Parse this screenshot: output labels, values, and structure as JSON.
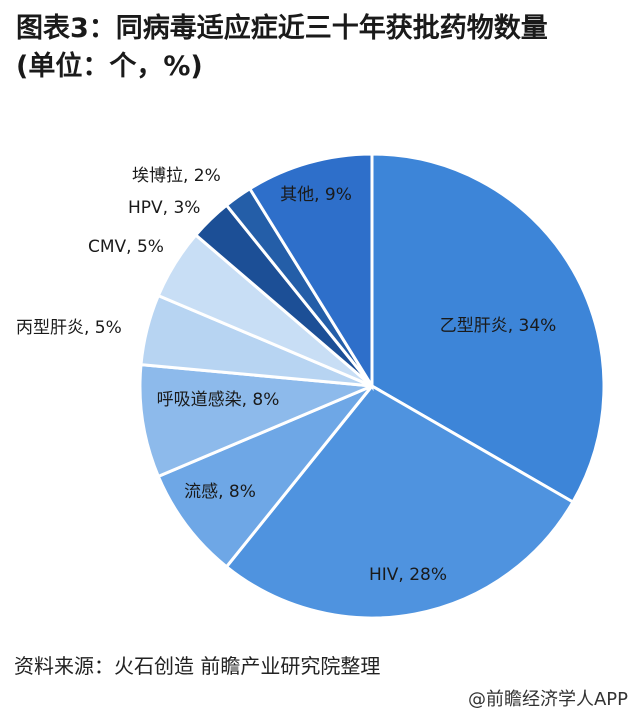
{
  "title_line1": "图表3：同病毒适应症近三十年获批药物数量",
  "title_line2": "(单位：个，%)",
  "source": "资料来源：火石创造 前瞻产业研究院整理",
  "credit": "@前瞻经济学人APP",
  "colors": {
    "乙型肝炎": "#3d85d8",
    "HIV": "#4f93df",
    "流感": "#6ea7e6",
    "呼吸道感染": "#8dbaeb",
    "丙型肝炎": "#b7d4f2",
    "CMV": "#c8def5",
    "HPV": "#1c4f96",
    "埃博拉": "#245ea8",
    "其他": "#2e6fca"
  },
  "chart_data": {
    "type": "pie",
    "slices": [
      {
        "label": "乙型肝炎",
        "value": 34,
        "text": "乙型肝炎, 34%"
      },
      {
        "label": "HIV",
        "value": 28,
        "text": "HIV, 28%"
      },
      {
        "label": "流感",
        "value": 8,
        "text": "流感, 8%"
      },
      {
        "label": "呼吸道感染",
        "value": 8,
        "text": "呼吸道感染, 8%"
      },
      {
        "label": "丙型肝炎",
        "value": 5,
        "text": "丙型肝炎, 5%"
      },
      {
        "label": "CMV",
        "value": 5,
        "text": "CMV, 5%"
      },
      {
        "label": "HPV",
        "value": 3,
        "text": "HPV, 3%"
      },
      {
        "label": "埃博拉",
        "value": 2,
        "text": "埃博拉, 2%"
      },
      {
        "label": "其他",
        "value": 9,
        "text": "其他, 9%"
      }
    ]
  }
}
